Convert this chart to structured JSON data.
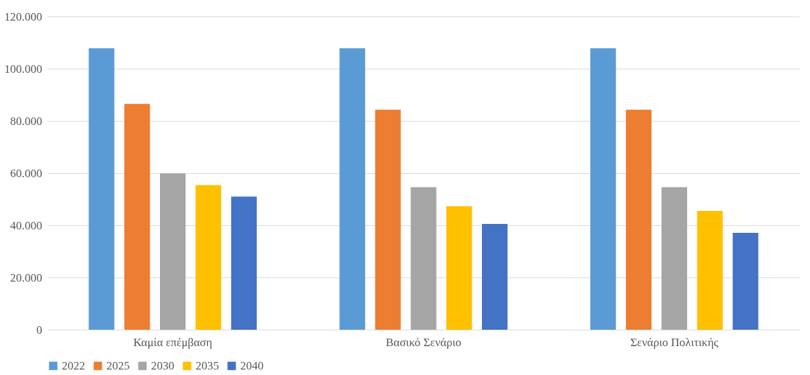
{
  "chart_data": {
    "type": "bar",
    "categories": [
      "Καμία επέμβαση",
      "Βασικό Σενάριο",
      "Σενάριο Πολιτικής"
    ],
    "series": [
      {
        "name": "2022",
        "color": "#5b9bd5",
        "values": [
          107800,
          107800,
          107800
        ]
      },
      {
        "name": "2025",
        "color": "#ed7d31",
        "values": [
          86500,
          84300,
          84300
        ]
      },
      {
        "name": "2030",
        "color": "#a5a5a5",
        "values": [
          59900,
          54600,
          54600
        ]
      },
      {
        "name": "2035",
        "color": "#ffc000",
        "values": [
          55400,
          47300,
          45500
        ]
      },
      {
        "name": "2040",
        "color": "#4472c4",
        "values": [
          51000,
          40500,
          37100
        ]
      }
    ],
    "ylim": [
      0,
      120000
    ],
    "yticks": [
      {
        "value": 0,
        "label": "0"
      },
      {
        "value": 20000,
        "label": "20.000"
      },
      {
        "value": 40000,
        "label": "40.000"
      },
      {
        "value": 60000,
        "label": "60.000"
      },
      {
        "value": 80000,
        "label": "80.000"
      },
      {
        "value": 100000,
        "label": "100.000"
      },
      {
        "value": 120000,
        "label": "120.000"
      }
    ],
    "grid": "y",
    "legend": "bottom"
  }
}
